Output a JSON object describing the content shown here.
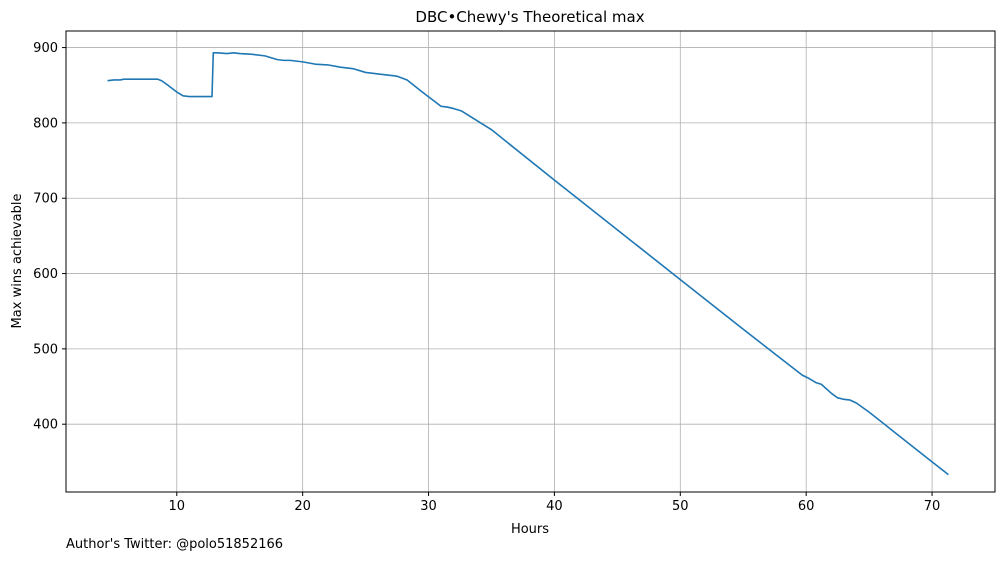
{
  "footer_text": "Author's Twitter: @polo51852166",
  "chart_data": {
    "type": "line",
    "title": "DBC•Chewy's Theoretical max",
    "xlabel": "Hours",
    "ylabel": "Max wins achievable",
    "xlim": [
      1.2,
      75.0
    ],
    "ylim": [
      310,
      922
    ],
    "xticks": [
      10,
      20,
      30,
      40,
      50,
      60,
      70
    ],
    "yticks": [
      400,
      500,
      600,
      700,
      800,
      900
    ],
    "grid": true,
    "line_color": "#1f77b4",
    "series": [
      {
        "x": [
          4.5,
          5.0,
          5.5,
          5.8,
          6.5,
          7.5,
          8.5,
          8.8,
          9.3,
          10.0,
          10.5,
          11.0,
          12.0,
          12.8,
          12.9,
          13.2,
          14.0,
          14.5,
          15.0,
          16.0,
          17.0,
          18.0,
          18.5,
          19.0,
          20.0,
          21.0,
          22.0,
          23.0,
          24.0,
          25.0,
          25.5,
          26.5,
          27.5,
          28.3,
          29.5,
          31.0,
          31.5,
          32.0,
          32.6,
          35.0,
          40.0,
          45.0,
          50.0,
          55.0,
          59.7,
          60.2,
          60.8,
          61.2,
          62.0,
          62.5,
          63.0,
          63.5,
          64.0,
          64.5,
          65.0,
          70.0,
          71.3
        ],
        "y": [
          856,
          857,
          857,
          858,
          858,
          858,
          858,
          856,
          850,
          841,
          836,
          835,
          835,
          835,
          893,
          893,
          892,
          893,
          892,
          891,
          889,
          884,
          883,
          883,
          881,
          878,
          877,
          874,
          872,
          867,
          866,
          864,
          862,
          857,
          841,
          822,
          821,
          819,
          816,
          791,
          724,
          658,
          592,
          526,
          465,
          461,
          455,
          453,
          441,
          435,
          433,
          432,
          428,
          422,
          416,
          350,
          333
        ]
      }
    ]
  }
}
